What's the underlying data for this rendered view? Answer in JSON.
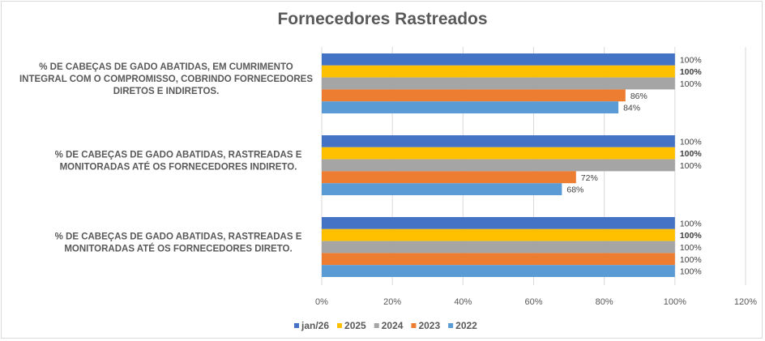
{
  "chart_data": {
    "type": "bar",
    "orientation": "horizontal",
    "title": "Fornecedores  Rastreados",
    "categories": [
      "% DE CABEÇAS DE GADO ABATIDAS, EM CUMRIMENTO INTEGRAL COM O COMPROMISSO, COBRINDO FORNECEDORES DIRETOS E INDIRETOS.",
      "% DE CABEÇAS DE GADO ABATIDAS, RASTREADAS E MONITORADAS ATÉ OS FORNECEDORES INDIRETO.",
      "% DE CABEÇAS DE GADO ABATIDAS, RASTREADAS E MONITORADAS ATÉ OS FORNECEDORES DIRETO."
    ],
    "category_lines": [
      [
        "% DE CABEÇAS DE GADO ABATIDAS, EM CUMRIMENTO",
        "INTEGRAL COM O COMPROMISSO, COBRINDO FORNECEDORES",
        "DIRETOS E INDIRETOS."
      ],
      [
        "% DE CABEÇAS DE GADO ABATIDAS, RASTREADAS E",
        "MONITORADAS ATÉ OS FORNECEDORES INDIRETO."
      ],
      [
        "% DE CABEÇAS DE GADO ABATIDAS, RASTREADAS E",
        "MONITORADAS ATÉ OS FORNECEDORES DIRETO."
      ]
    ],
    "series": [
      {
        "name": "jan/26",
        "color": "#4472C4",
        "values": [
          100,
          100,
          100
        ],
        "labels": [
          "100%",
          "100%",
          "100%"
        ],
        "bold_labels": false
      },
      {
        "name": "2025",
        "color": "#FFC000",
        "values": [
          100,
          100,
          100
        ],
        "labels": [
          "100%",
          "100%",
          "100%"
        ],
        "bold_labels": true
      },
      {
        "name": "2024",
        "color": "#A5A5A5",
        "values": [
          100,
          100,
          100
        ],
        "labels": [
          "100%",
          "100%",
          "100%"
        ],
        "bold_labels": false
      },
      {
        "name": "2023",
        "color": "#ED7D31",
        "values": [
          86,
          72,
          100
        ],
        "labels": [
          "86%",
          "72%",
          "100%"
        ],
        "bold_labels": false
      },
      {
        "name": "2022",
        "color": "#5B9BD5",
        "values": [
          84,
          68,
          100
        ],
        "labels": [
          "84%",
          "68%",
          "100%"
        ],
        "bold_labels": false
      }
    ],
    "xlim": [
      0,
      120
    ],
    "xticks": [
      "0%",
      "20%",
      "40%",
      "60%",
      "80%",
      "100%",
      "120%"
    ],
    "grid": "vertical",
    "legend": "bottom"
  }
}
